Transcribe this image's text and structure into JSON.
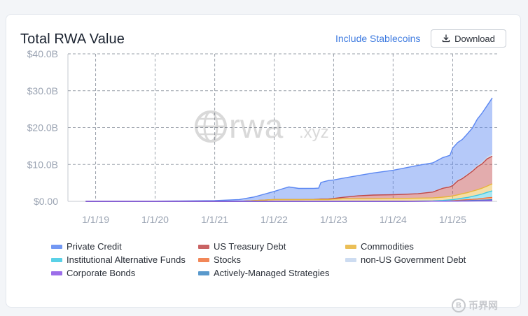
{
  "header": {
    "title": "Total RWA Value",
    "stablecoins_link": "Include Stablecoins",
    "download_label": "Download"
  },
  "watermark": {
    "logo_text": "rwa",
    "logo_suffix": ".xyz"
  },
  "corner_mark": {
    "text": "币界网",
    "coin_glyph": "B"
  },
  "chart_data": {
    "type": "area",
    "stacked": true,
    "title": "Total RWA Value",
    "xlabel": "",
    "ylabel": "",
    "x_ticks": [
      "1/1/19",
      "1/1/20",
      "1/1/21",
      "1/1/22",
      "1/1/23",
      "1/1/24",
      "1/1/25"
    ],
    "y_ticks": [
      "$0.00",
      "$10.0B",
      "$20.0B",
      "$30.0B",
      "$40.0B"
    ],
    "ylim": [
      0,
      40
    ],
    "y_unit": "B USD",
    "grid": "dashed",
    "legend_position": "bottom",
    "x": [
      "2018-11-01",
      "2019-06-01",
      "2020-01-01",
      "2020-06-01",
      "2021-01-01",
      "2021-06-01",
      "2021-09-01",
      "2022-01-01",
      "2022-03-01",
      "2022-04-01",
      "2022-06-01",
      "2022-09-01",
      "2022-10-01",
      "2022-10-15",
      "2022-12-01",
      "2023-01-01",
      "2023-03-01",
      "2023-06-01",
      "2023-09-01",
      "2024-01-01",
      "2024-03-01",
      "2024-06-01",
      "2024-09-01",
      "2024-11-01",
      "2024-12-15",
      "2025-01-01",
      "2025-02-01",
      "2025-03-01",
      "2025-04-01",
      "2025-05-01",
      "2025-06-01",
      "2025-07-01",
      "2025-08-01",
      "2025-09-01"
    ],
    "series": [
      {
        "name": "Corporate Bonds",
        "color": "#8b55e6",
        "values": [
          0,
          0,
          0,
          0,
          0,
          0,
          0,
          0,
          0,
          0,
          0,
          0,
          0,
          0,
          0,
          0,
          0,
          0,
          0,
          0,
          0,
          0.02,
          0.03,
          0.04,
          0.05,
          0.05,
          0.06,
          0.08,
          0.1,
          0.12,
          0.14,
          0.16,
          0.18,
          0.2
        ]
      },
      {
        "name": "Actively-Managed Strategies",
        "color": "#3d88c4",
        "values": [
          0,
          0,
          0,
          0,
          0,
          0,
          0,
          0,
          0,
          0,
          0,
          0,
          0,
          0,
          0,
          0,
          0,
          0,
          0,
          0,
          0,
          0,
          0,
          0,
          0.02,
          0.03,
          0.05,
          0.08,
          0.1,
          0.12,
          0.15,
          0.18,
          0.22,
          0.25
        ]
      },
      {
        "name": "Stocks",
        "color": "#f0733c",
        "values": [
          0,
          0,
          0,
          0,
          0,
          0,
          0,
          0,
          0,
          0,
          0,
          0,
          0,
          0,
          0,
          0,
          0,
          0,
          0,
          0,
          0,
          0,
          0,
          0,
          0.05,
          0.1,
          0.15,
          0.2,
          0.25,
          0.3,
          0.35,
          0.45,
          0.55,
          0.6
        ]
      },
      {
        "name": "Institutional Alternative Funds",
        "color": "#3ec9e3",
        "values": [
          0,
          0,
          0,
          0,
          0,
          0,
          0,
          0,
          0,
          0,
          0,
          0,
          0,
          0,
          0,
          0,
          0,
          0,
          0,
          0,
          0,
          0.05,
          0.1,
          0.2,
          0.3,
          0.3,
          0.4,
          0.5,
          0.6,
          0.8,
          1.0,
          1.2,
          1.5,
          1.8
        ]
      },
      {
        "name": "Commodities",
        "color": "#e8b53a",
        "values": [
          0,
          0,
          0,
          0,
          0,
          0,
          0.2,
          0.5,
          0.5,
          0.5,
          0.5,
          0.5,
          0.5,
          0.5,
          0.5,
          0.6,
          0.7,
          0.7,
          0.7,
          0.8,
          0.8,
          0.8,
          0.8,
          0.9,
          0.9,
          1.0,
          1.1,
          1.2,
          1.3,
          1.4,
          1.5,
          1.6,
          1.7,
          1.9
        ]
      },
      {
        "name": "US Treasury Debt",
        "color": "#c0484a",
        "values": [
          0,
          0,
          0,
          0,
          0,
          0,
          0,
          0,
          0,
          0,
          0,
          0.03,
          0.08,
          0.12,
          0.15,
          0.2,
          0.4,
          0.8,
          1.0,
          1.0,
          1.1,
          1.2,
          1.6,
          2.4,
          2.6,
          2.8,
          3.8,
          4.1,
          4.8,
          5.4,
          6.2,
          6.6,
          7.4,
          7.5
        ]
      },
      {
        "name": "non-US Government Debt",
        "color": "#c5d7ef",
        "values": [
          0,
          0,
          0,
          0,
          0,
          0,
          0,
          0,
          0,
          0,
          0,
          0,
          0,
          0,
          0,
          0,
          0,
          0,
          0,
          0.02,
          0.05,
          0.08,
          0.1,
          0.12,
          0.15,
          0.18,
          0.2,
          0.22,
          0.25,
          0.3,
          0.35,
          0.4,
          0.45,
          0.5
        ]
      },
      {
        "name": "Private Credit",
        "color": "#5b87f2",
        "values": [
          0,
          0,
          0.05,
          0.1,
          0.2,
          0.5,
          1.0,
          2.2,
          3.0,
          3.4,
          3.0,
          3.0,
          3.0,
          4.5,
          5.0,
          5.0,
          5.2,
          5.5,
          6.0,
          6.6,
          7.0,
          7.6,
          7.8,
          8.2,
          8.4,
          10.0,
          10.2,
          10.4,
          10.9,
          11.4,
          12.6,
          13.4,
          14.0,
          15.3
        ]
      }
    ]
  },
  "legend": [
    {
      "label": "Private Credit",
      "color": "#5b87f2"
    },
    {
      "label": "US Treasury Debt",
      "color": "#c0484a"
    },
    {
      "label": "Commodities",
      "color": "#e8b53a"
    },
    {
      "label": "Institutional Alternative Funds",
      "color": "#3ec9e3"
    },
    {
      "label": "Stocks",
      "color": "#f0733c"
    },
    {
      "label": "non-US Government Debt",
      "color": "#c5d7ef"
    },
    {
      "label": "Corporate Bonds",
      "color": "#8b55e6"
    },
    {
      "label": "Actively-Managed Strategies",
      "color": "#3d88c4"
    }
  ]
}
